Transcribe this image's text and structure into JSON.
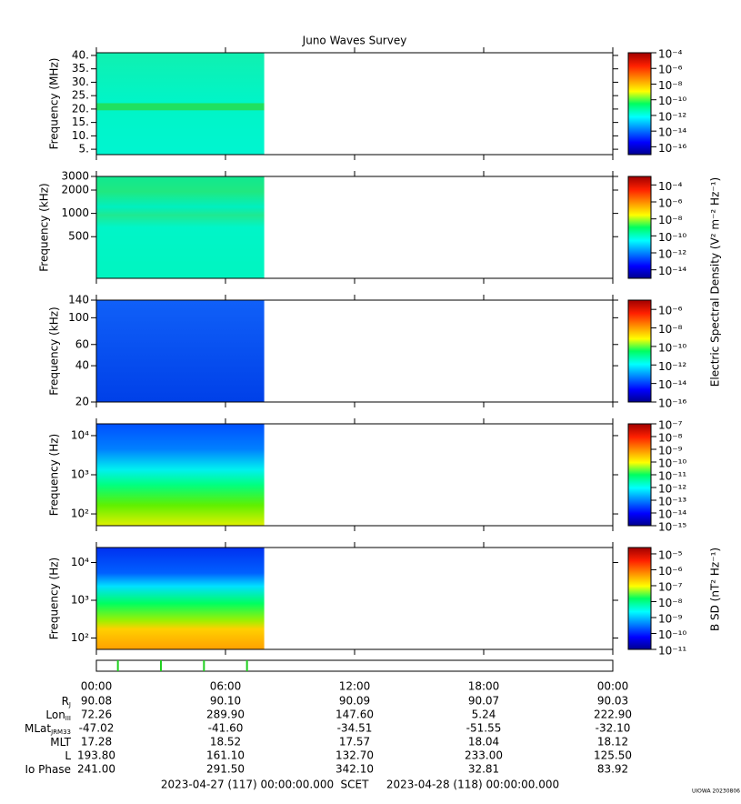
{
  "title": "Juno Waves Survey",
  "time_axis": {
    "xlim": [
      0,
      24
    ],
    "xticks": [
      {
        "value": 0,
        "label": "00:00"
      },
      {
        "value": 6,
        "label": "06:00"
      },
      {
        "value": 12,
        "label": "12:00"
      },
      {
        "value": 18,
        "label": "18:00"
      },
      {
        "value": 24,
        "label": "00:00"
      }
    ]
  },
  "chart_data": [
    {
      "type": "heatmap",
      "ylabel": "Frequency (MHz)",
      "yscale": "linear",
      "ylim": [
        3,
        41
      ],
      "x": [
        0,
        7.8
      ],
      "yticks": [
        {
          "value": 5,
          "label": "5."
        },
        {
          "value": 10,
          "label": "10."
        },
        {
          "value": 15,
          "label": "15."
        },
        {
          "value": 20,
          "label": "20."
        },
        {
          "value": 25,
          "label": "25."
        },
        {
          "value": 30,
          "label": "30."
        },
        {
          "value": 35,
          "label": "35."
        },
        {
          "value": 40,
          "label": "40."
        }
      ],
      "zlim": [
        1e-17,
        0.0001
      ],
      "zticks": [
        {
          "value": 0.0001,
          "label": "10⁻⁴"
        },
        {
          "value": 1e-06,
          "label": "10⁻⁶"
        },
        {
          "value": 1e-08,
          "label": "10⁻⁸"
        },
        {
          "value": 1e-10,
          "label": "10⁻¹⁰"
        },
        {
          "value": 1e-12,
          "label": "10⁻¹²"
        },
        {
          "value": 1e-14,
          "label": "10⁻¹⁴"
        },
        {
          "value": 1e-16,
          "label": "10⁻¹⁶"
        }
      ]
    },
    {
      "type": "heatmap",
      "ylabel": "Frequency (kHz)",
      "yscale": "log",
      "ylim": [
        145,
        3000
      ],
      "x": [
        0,
        7.8
      ],
      "yticks": [
        500,
        1000,
        2000,
        3000
      ],
      "zlim": [
        1e-15,
        0.001
      ],
      "zticks": [
        {
          "value": 0.0001,
          "label": "10⁻⁴"
        },
        {
          "value": 1e-06,
          "label": "10⁻⁶"
        },
        {
          "value": 1e-08,
          "label": "10⁻⁸"
        },
        {
          "value": 1e-10,
          "label": "10⁻¹⁰"
        },
        {
          "value": 1e-12,
          "label": "10⁻¹²"
        },
        {
          "value": 1e-14,
          "label": "10⁻¹⁴"
        }
      ]
    },
    {
      "type": "heatmap",
      "ylabel": "Frequency (kHz)",
      "yscale": "log",
      "ylim": [
        20,
        140
      ],
      "x": [
        0,
        7.8
      ],
      "yticks": [
        20,
        40,
        60,
        100,
        140
      ],
      "zlim": [
        1e-16,
        1e-05
      ],
      "zticks": [
        {
          "value": 1e-06,
          "label": "10⁻⁶"
        },
        {
          "value": 1e-08,
          "label": "10⁻⁸"
        },
        {
          "value": 1e-10,
          "label": "10⁻¹⁰"
        },
        {
          "value": 1e-12,
          "label": "10⁻¹²"
        },
        {
          "value": 1e-14,
          "label": "10⁻¹⁴"
        },
        {
          "value": 1e-16,
          "label": "10⁻¹⁶"
        }
      ]
    },
    {
      "type": "heatmap",
      "ylabel": "Frequency (Hz)",
      "yscale": "log",
      "ylim": [
        50,
        20000
      ],
      "x": [
        0,
        7.8
      ],
      "yticks": [
        {
          "value": 100,
          "label": "10²"
        },
        {
          "value": 1000,
          "label": "10³"
        },
        {
          "value": 10000,
          "label": "10⁴"
        }
      ],
      "zlim": [
        1e-15,
        1e-07
      ],
      "zticks": [
        {
          "value": 1e-07,
          "label": "10⁻⁷"
        },
        {
          "value": 1e-08,
          "label": "10⁻⁸"
        },
        {
          "value": 1e-09,
          "label": "10⁻⁹"
        },
        {
          "value": 1e-10,
          "label": "10⁻¹⁰"
        },
        {
          "value": 1e-11,
          "label": "10⁻¹¹"
        },
        {
          "value": 1e-12,
          "label": "10⁻¹²"
        },
        {
          "value": 1e-13,
          "label": "10⁻¹³"
        },
        {
          "value": 1e-14,
          "label": "10⁻¹⁴"
        },
        {
          "value": 1e-15,
          "label": "10⁻¹⁵"
        }
      ]
    },
    {
      "type": "heatmap",
      "ylabel": "Frequency (Hz)",
      "yscale": "log",
      "ylim": [
        50,
        25000
      ],
      "x": [
        0,
        7.8
      ],
      "yticks": [
        {
          "value": 100,
          "label": "10²"
        },
        {
          "value": 1000,
          "label": "10³"
        },
        {
          "value": 10000,
          "label": "10⁴"
        }
      ],
      "zlim": [
        1e-11,
        2.5e-05
      ],
      "zticks": [
        {
          "value": 1e-05,
          "label": "10⁻⁵"
        },
        {
          "value": 1e-06,
          "label": "10⁻⁶"
        },
        {
          "value": 1e-07,
          "label": "10⁻⁷"
        },
        {
          "value": 1e-08,
          "label": "10⁻⁸"
        },
        {
          "value": 1e-09,
          "label": "10⁻⁹"
        },
        {
          "value": 1e-10,
          "label": "10⁻¹⁰"
        },
        {
          "value": 1e-11,
          "label": "10⁻¹¹"
        }
      ]
    }
  ],
  "electric_colorbar_title": "Electric Spectral Density (V² m⁻² Hz⁻¹)",
  "magnetic_colorbar_title": "B SD (nT² Hz⁻¹)",
  "markers": [
    1,
    3,
    5,
    7
  ],
  "ephemeris": [
    {
      "name": "R",
      "sub": "J",
      "values": [
        "90.08",
        "90.10",
        "90.09",
        "90.07",
        "90.03"
      ]
    },
    {
      "name": "Lon",
      "sub": "III",
      "values": [
        "72.26",
        "289.90",
        "147.60",
        "5.24",
        "222.90"
      ]
    },
    {
      "name": "MLat",
      "sub": "JRM33",
      "values": [
        "-47.02",
        "-41.60",
        "-34.51",
        "-51.55",
        "-32.10"
      ]
    },
    {
      "name": "MLT",
      "values": [
        "17.28",
        "18.52",
        "17.57",
        "18.04",
        "18.12"
      ]
    },
    {
      "name": "L",
      "values": [
        "193.80",
        "161.10",
        "132.70",
        "233.00",
        "125.50"
      ]
    },
    {
      "name": "Io Phase",
      "values": [
        "241.00",
        "291.50",
        "342.10",
        "32.81",
        "83.92"
      ]
    }
  ],
  "scet": {
    "start": "2023-04-27 (117) 00:00:00.000",
    "label": "SCET",
    "end": "2023-04-28 (118) 00:00:00.000"
  },
  "credit": "UIOWA 20230806"
}
